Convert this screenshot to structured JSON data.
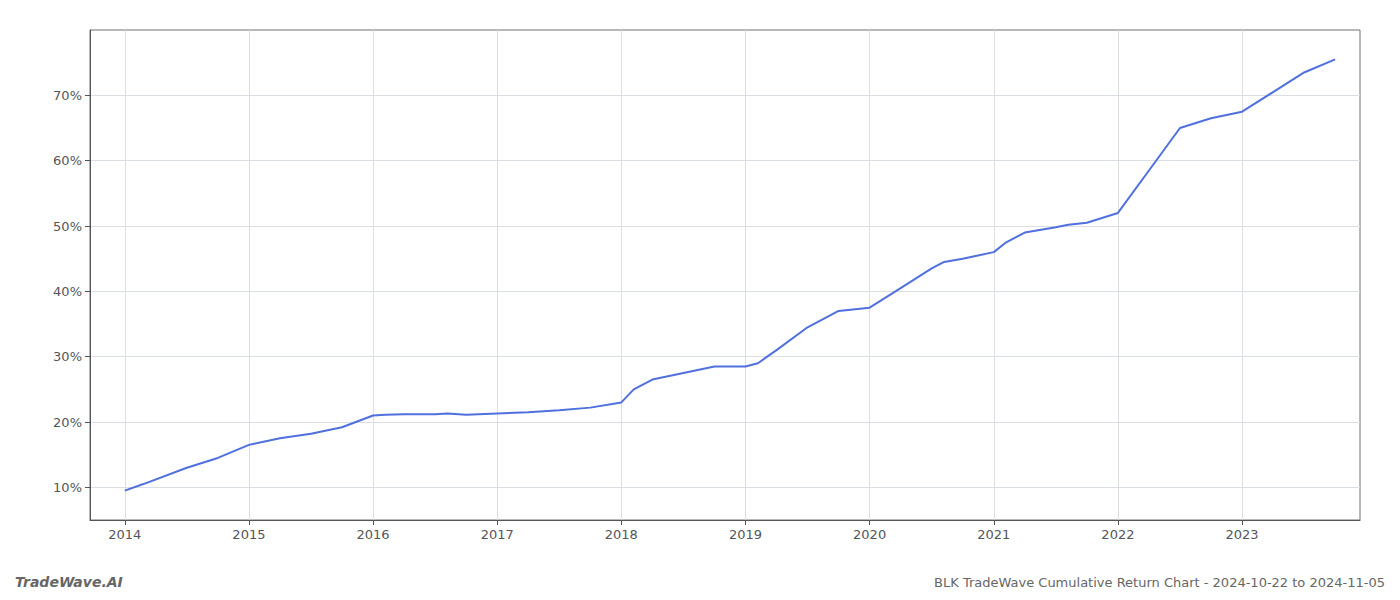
{
  "chart_data": {
    "type": "line",
    "title": "BLK TradeWave Cumulative Return Chart - 2024-10-22 to 2024-11-05",
    "annotations": [
      "TradeWave.AI"
    ],
    "x": [
      2014.0,
      2014.15,
      2014.5,
      2014.75,
      2015.0,
      2015.25,
      2015.5,
      2015.75,
      2016.0,
      2016.1,
      2016.25,
      2016.5,
      2016.6,
      2016.75,
      2017.0,
      2017.25,
      2017.5,
      2017.75,
      2018.0,
      2018.1,
      2018.25,
      2018.5,
      2018.75,
      2019.0,
      2019.1,
      2019.25,
      2019.5,
      2019.75,
      2020.0,
      2020.25,
      2020.5,
      2020.6,
      2020.75,
      2021.0,
      2021.1,
      2021.25,
      2021.5,
      2021.6,
      2021.75,
      2022.0,
      2022.25,
      2022.5,
      2022.75,
      2023.0,
      2023.25,
      2023.5,
      2023.75
    ],
    "values": [
      9.5,
      10.5,
      13.0,
      14.5,
      16.5,
      17.5,
      18.2,
      19.2,
      21.0,
      21.1,
      21.2,
      21.2,
      21.3,
      21.1,
      21.3,
      21.5,
      21.8,
      22.2,
      23.0,
      25.0,
      26.5,
      27.5,
      28.5,
      28.5,
      29.0,
      31.0,
      34.5,
      37.0,
      37.5,
      40.5,
      43.5,
      44.5,
      45.0,
      46.0,
      47.5,
      49.0,
      49.8,
      50.2,
      50.5,
      52.0,
      58.5,
      65.0,
      66.5,
      67.5,
      70.5,
      73.5,
      75.5
    ],
    "xlim": [
      2013.72,
      2023.95
    ],
    "xticks": [
      2014,
      2015,
      2016,
      2017,
      2018,
      2019,
      2020,
      2021,
      2022,
      2023
    ],
    "ylim": [
      5,
      80
    ],
    "yticks": [
      {
        "value": 10,
        "label": "10%"
      },
      {
        "value": 20,
        "label": "20%"
      },
      {
        "value": 30,
        "label": "30%"
      },
      {
        "value": 40,
        "label": "40%"
      },
      {
        "value": 50,
        "label": "50%"
      },
      {
        "value": 60,
        "label": "60%"
      },
      {
        "value": 70,
        "label": "70%"
      }
    ],
    "grid": true
  }
}
